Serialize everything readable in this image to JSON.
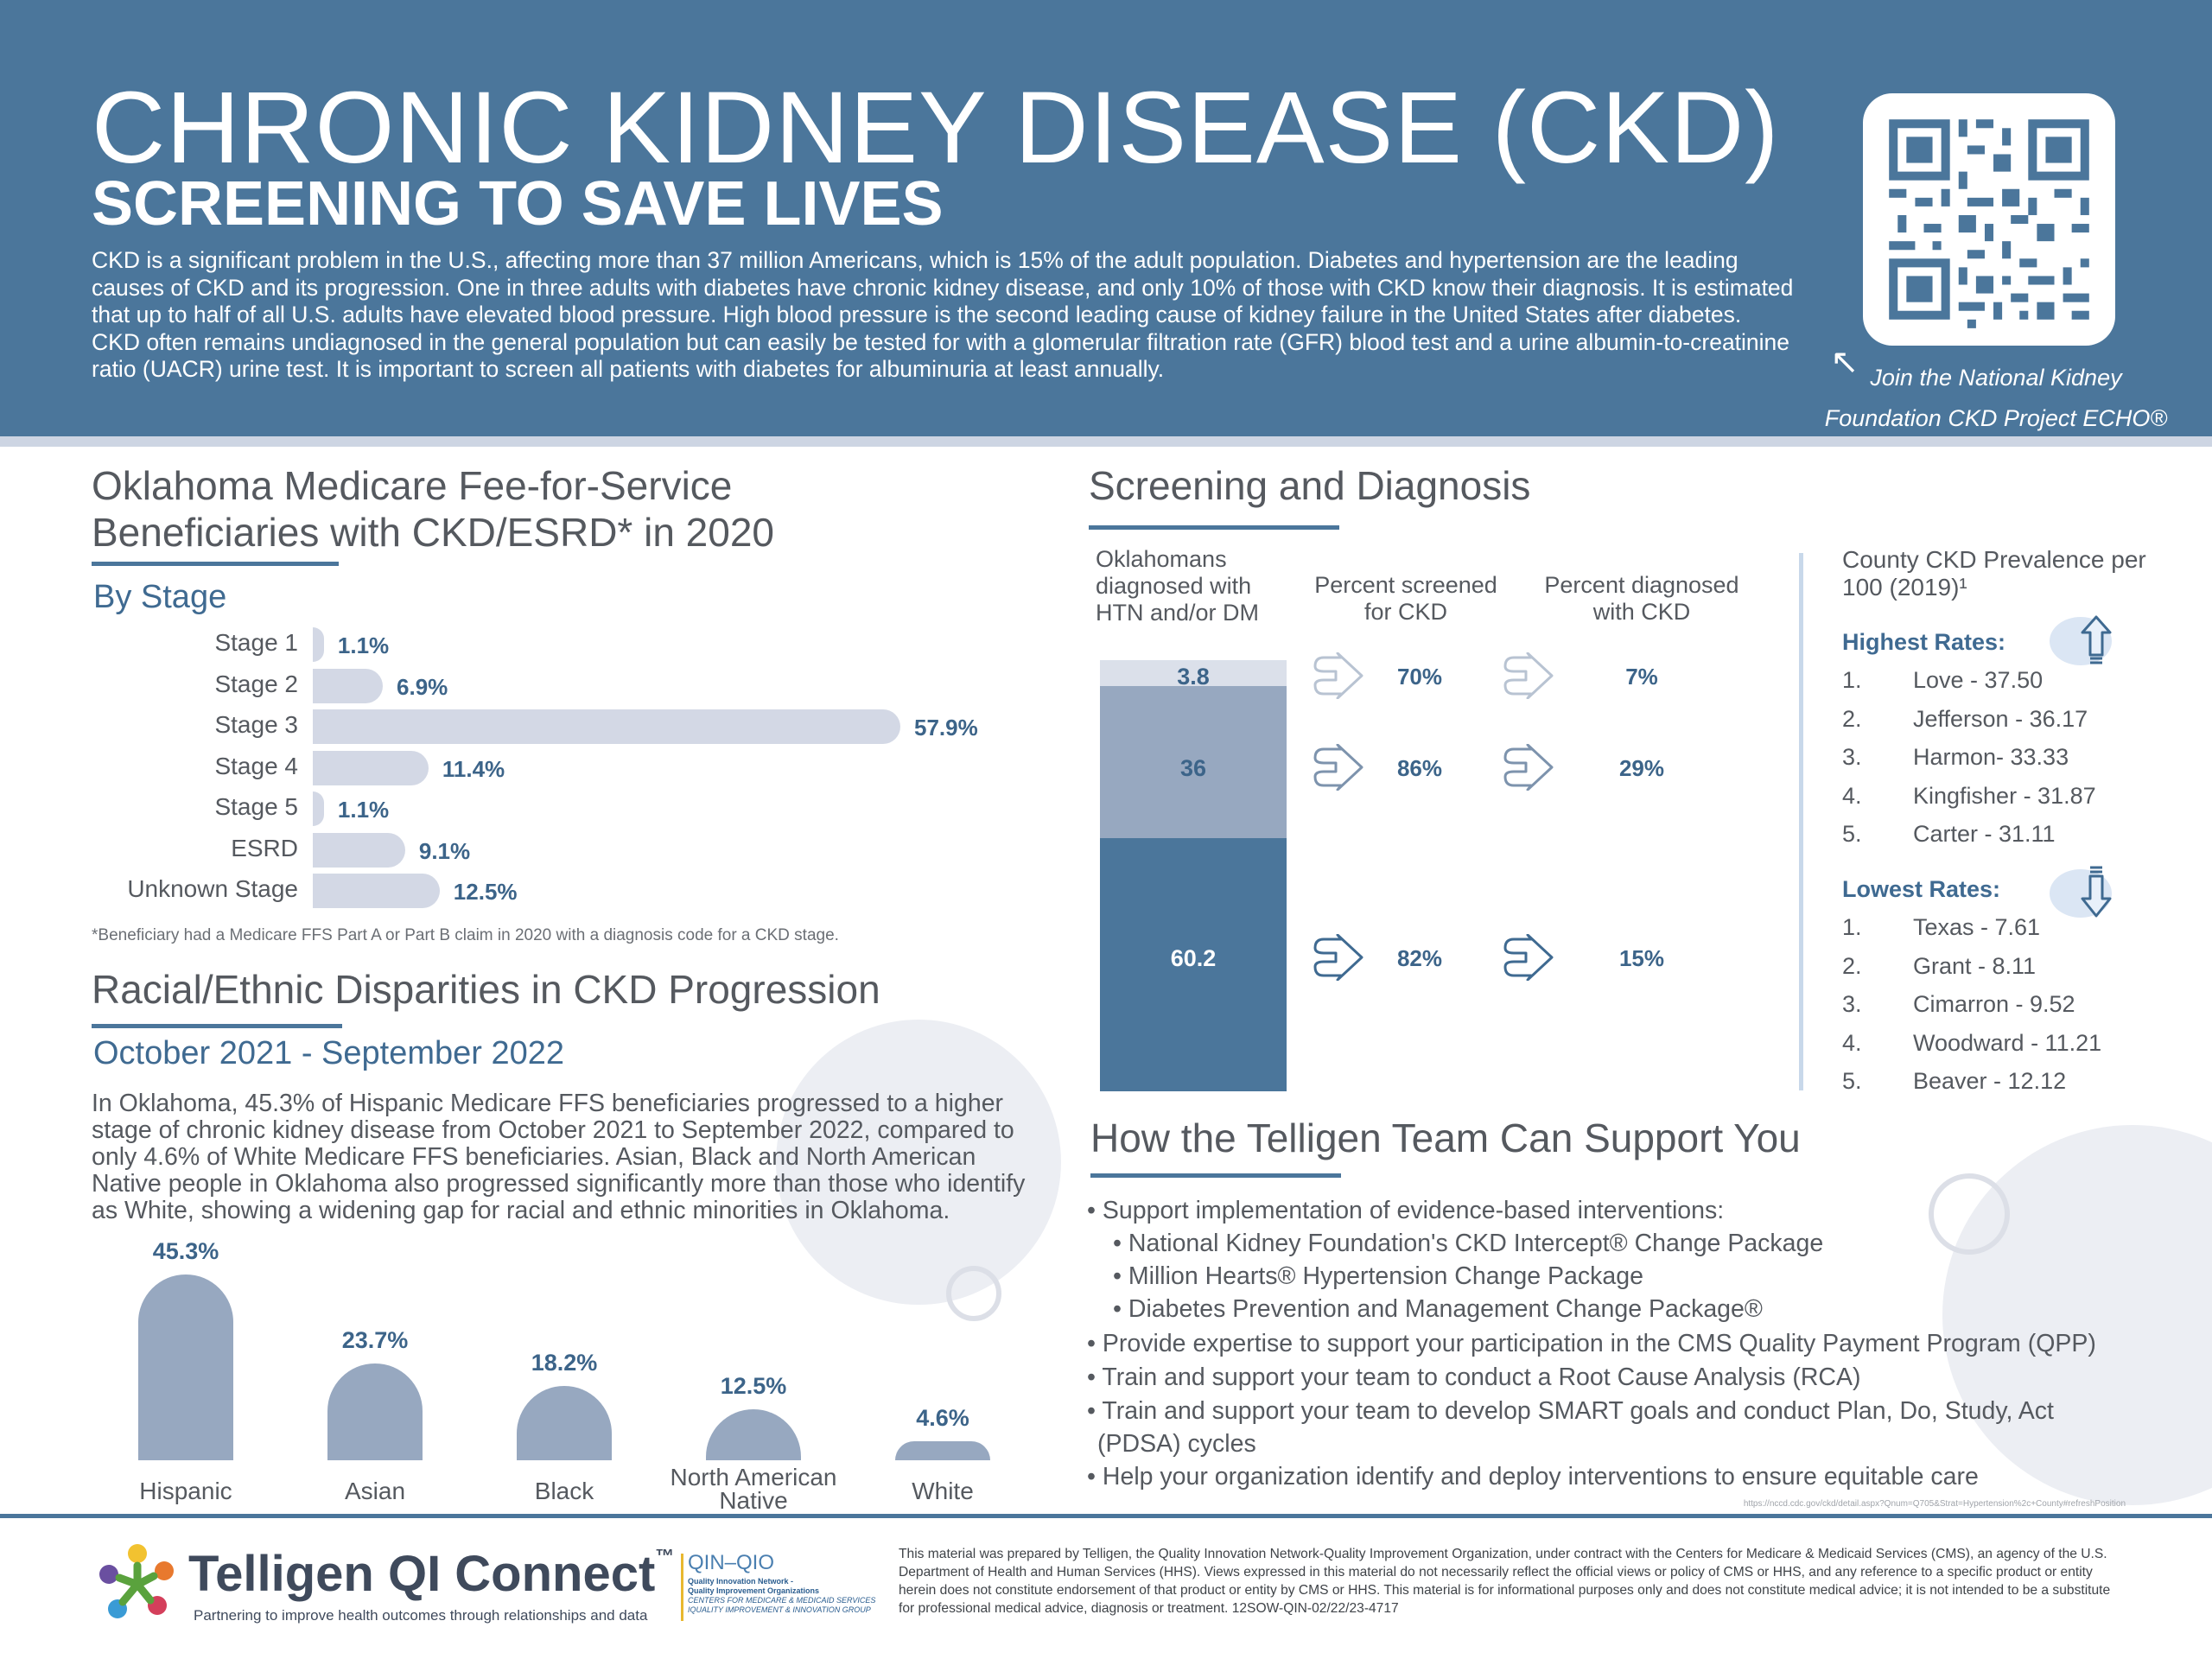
{
  "header": {
    "title": "CHRONIC KIDNEY DISEASE (CKD)",
    "subtitle": "SCREENING TO SAVE LIVES",
    "intro": "CKD is a significant problem in the U.S., affecting more than 37 million Americans, which is 15% of the adult population. Diabetes and hypertension are the leading causes of CKD and its progression. One in three adults with diabetes have chronic kidney disease, and only 10% of those with CKD know their diagnosis. It is estimated that up to half of all U.S. adults have elevated blood pressure. High blood pressure is the second leading cause of kidney failure in the United States after diabetes. CKD often remains undiagnosed in the general population but can easily be tested for with a glomerular filtration rate (GFR) blood test and a urine albumin-to-creatinine ratio (UACR) urine test. It is important to screen all patients with diabetes for albuminuria at least annually.",
    "qr_caption_1": "Join the National Kidney",
    "qr_caption_2": "Foundation CKD Project ECHO®"
  },
  "stage_section": {
    "title_1": "Oklahoma Medicare Fee-for-Service",
    "title_2": "Beneficiaries with CKD/ESRD* in 2020",
    "subtitle": "By Stage",
    "footnote": "*Beneficiary had a Medicare FFS Part A or Part B claim in 2020 with a diagnosis code for a CKD stage."
  },
  "race_section": {
    "title": "Racial/Ethnic Disparities in CKD Progression",
    "subtitle": "October 2021 - September 2022",
    "text": "In Oklahoma, 45.3% of Hispanic Medicare FFS beneficiaries progressed to a higher stage of chronic kidney disease from October 2021 to September 2022, compared to only 4.6% of White Medicare FFS beneficiaries. Asian, Black and North American Native people in Oklahoma also progressed significantly more than those who identify as White, showing a widening gap for racial and ethnic minorities in Oklahoma."
  },
  "screening": {
    "title": "Screening and Diagnosis",
    "col1": "Oklahomans diagnosed with HTN and/or DM",
    "col2": "Percent screened for CKD",
    "col3": "Percent diagnosed with CKD",
    "rows": [
      {
        "segment": "3.8",
        "screened": "70%",
        "diagnosed": "7%"
      },
      {
        "segment": "36",
        "screened": "86%",
        "diagnosed": "29%"
      },
      {
        "segment": "60.2",
        "screened": "82%",
        "diagnosed": "15%"
      }
    ]
  },
  "county": {
    "title": "County CKD Prevalence per 100 (2019)¹",
    "highest_title": "Highest Rates:",
    "highest": [
      {
        "num": "1.",
        "name": "Love - 37.50"
      },
      {
        "num": "2.",
        "name": "Jefferson - 36.17"
      },
      {
        "num": "3.",
        "name": "Harmon- 33.33"
      },
      {
        "num": "4.",
        "name": "Kingfisher - 31.87"
      },
      {
        "num": "5.",
        "name": "Carter - 31.11"
      }
    ],
    "lowest_title": "Lowest Rates:",
    "lowest": [
      {
        "num": "1.",
        "name": "Texas - 7.61"
      },
      {
        "num": "2.",
        "name": "Grant - 8.11"
      },
      {
        "num": "3.",
        "name": "Cimarron - 9.52"
      },
      {
        "num": "4.",
        "name": "Woodward - 11.21"
      },
      {
        "num": "5.",
        "name": "Beaver - 12.12"
      }
    ]
  },
  "support": {
    "title": "How the Telligen Team Can Support You",
    "items": [
      "• Support implementation of evidence-based interventions:",
      "• National Kidney Foundation's CKD Intercept® Change Package",
      "• Million Hearts® Hypertension Change Package",
      "• Diabetes Prevention and Management Change Package®",
      "• Provide expertise to support your participation in the CMS Quality Payment Program (QPP)",
      "• Train and support your team to conduct a Root Cause Analysis (RCA)",
      "• Train and support your team to develop SMART goals and conduct Plan, Do, Study, Act",
      "(PDSA) cycles",
      "• Help your organization identify and deploy interventions to ensure equitable care"
    ]
  },
  "footer": {
    "url": "https://nccd.cdc.gov/ckd/detail.aspx?Qnum=Q705&Strat=Hypertension%2c+County#refreshPosition",
    "logo": "Telligen QI Connect",
    "tm": "™",
    "tagline": "Partnering to improve health outcomes through relationships and data",
    "qin": "QIN–QIO",
    "qin_sub_1": "Quality Innovation Network -",
    "qin_sub_2": "Quality Improvement Organizations",
    "qin_sub_3": "CENTERS FOR MEDICARE & MEDICAID SERVICES",
    "qin_sub_4": "IQUALITY IMPROVEMENT & INNOVATION GROUP",
    "disclaimer": "This material was prepared by Telligen, the Quality Innovation Network-Quality Improvement Organization, under contract with the Centers for Medicare & Medicaid Services (CMS), an agency of the U.S. Department of Health and Human Services (HHS). Views expressed in this material do not necessarily reflect the official views or policy of CMS or HHS, and any reference to a specific product or entity herein does not constitute endorsement of that product or entity by CMS or HHS. This material is for informational purposes only and does not constitute medical advice; it is not intended to be a substitute for professional medical advice, diagnosis or treatment. 12SOW-QIN-02/22/23-4717"
  },
  "chart_data": [
    {
      "type": "bar",
      "orientation": "horizontal",
      "categories": [
        "Stage 1",
        "Stage 2",
        "Stage 3",
        "Stage 4",
        "Stage 5",
        "ESRD",
        "Unknown Stage"
      ],
      "values": [
        1.1,
        6.9,
        57.9,
        11.4,
        1.1,
        9.1,
        12.5
      ],
      "labels": [
        "1.1%",
        "6.9%",
        "57.9%",
        "11.4%",
        "1.1%",
        "9.1%",
        "12.5%"
      ]
    },
    {
      "type": "bar",
      "categories": [
        "Hispanic",
        "Asian",
        "Black",
        "North American Native",
        "White"
      ],
      "values": [
        45.3,
        23.7,
        18.2,
        12.5,
        4.6
      ],
      "labels": [
        "45.3%",
        "23.7%",
        "18.2%",
        "12.5%",
        "4.6%"
      ]
    },
    {
      "type": "bar",
      "stacked": true,
      "values": [
        3.8,
        36,
        60.2
      ],
      "colors": [
        "#dbe0ea",
        "#97a8c0",
        "#4b769b"
      ]
    }
  ]
}
